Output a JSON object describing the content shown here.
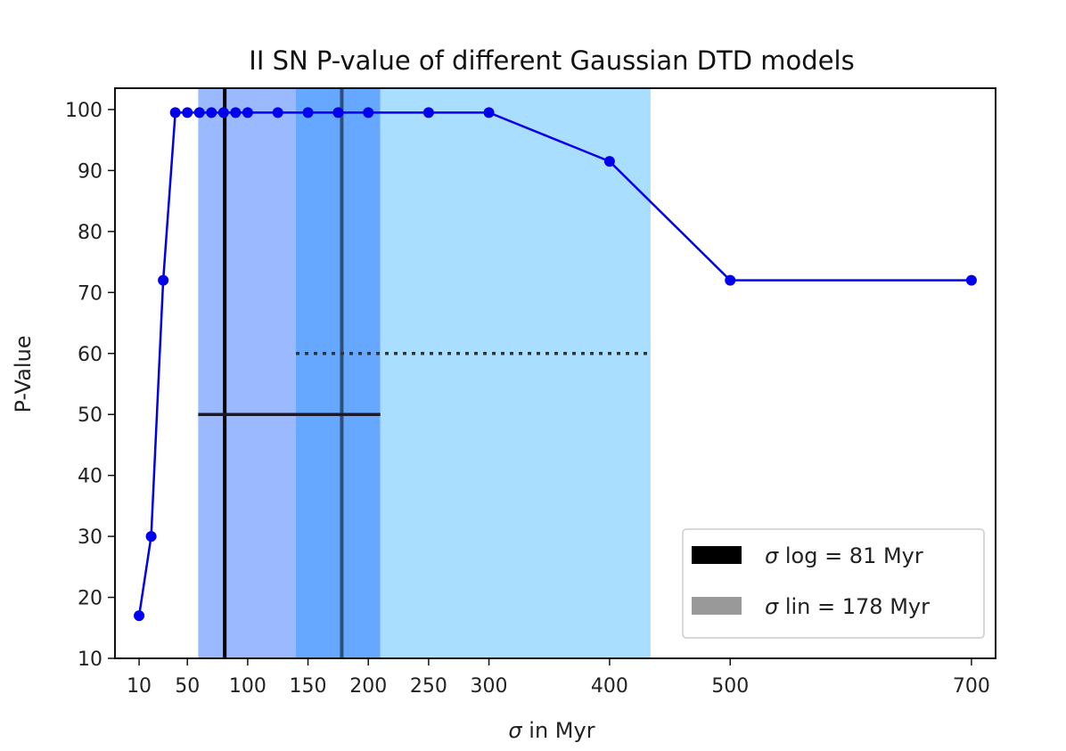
{
  "chart_data": {
    "type": "line",
    "title": "II SN P-value of different Gaussian DTD models",
    "xlabel_symbol": "σ",
    "xlabel_rest": " in Myr",
    "ylabel": "P-Value",
    "x_ticks": [
      10,
      50,
      100,
      150,
      200,
      250,
      300,
      400,
      500,
      700
    ],
    "y_ticks": [
      10,
      20,
      30,
      40,
      50,
      60,
      70,
      80,
      90,
      100
    ],
    "xlim": [
      -10,
      720
    ],
    "ylim": [
      10,
      103.5
    ],
    "series": [
      {
        "color": "#0000ee",
        "x": [
          10,
          20,
          30,
          40,
          50,
          60,
          70,
          80,
          90,
          100,
          125,
          150,
          175,
          200,
          250,
          300,
          400,
          500,
          700
        ],
        "y": [
          17,
          30,
          72,
          99.5,
          99.5,
          99.5,
          99.5,
          99.5,
          99.5,
          99.5,
          99.5,
          99.5,
          99.5,
          99.5,
          99.5,
          99.5,
          91.5,
          72,
          72
        ]
      }
    ],
    "bands": [
      {
        "x0": 59,
        "x1": 140,
        "color": "#9bb9ff"
      },
      {
        "x0": 140,
        "x1": 210,
        "color": "#66a7ff"
      },
      {
        "x0": 210,
        "x1": 434,
        "color": "#aadeff"
      }
    ],
    "vlines": [
      {
        "x": 81,
        "color": "#000000"
      },
      {
        "x": 178,
        "color": "#2e4f7a"
      }
    ],
    "hlines": [
      {
        "y": 50,
        "x0": 59,
        "x1": 210,
        "style": "solid",
        "color": "#1a1a2a"
      },
      {
        "y": 60,
        "x0": 140,
        "x1": 434,
        "style": "dotted",
        "color": "#333333"
      }
    ],
    "legend": {
      "position": "bottom-right",
      "entries": [
        {
          "symbol": "σ",
          "label": " log = 81 Myr",
          "color": "#000000"
        },
        {
          "symbol": "σ",
          "label": " lin = 178 Myr",
          "color": "#999999"
        }
      ]
    }
  }
}
